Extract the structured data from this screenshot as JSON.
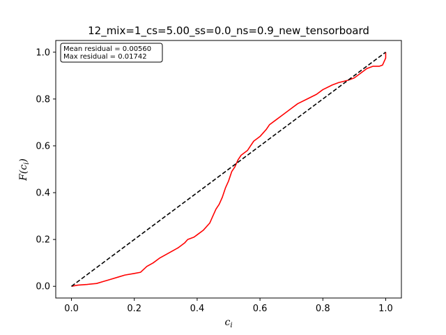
{
  "chart_data": {
    "type": "line",
    "title": "12_mix=1_cs=5.00_ss=0.0_ns=0.9_new_tensorboard",
    "xlabel": "c_i",
    "ylabel": "F(c_i)",
    "xlim": [
      -0.05,
      1.05
    ],
    "ylim": [
      -0.05,
      1.05
    ],
    "x_ticks": [
      "0.0",
      "0.2",
      "0.4",
      "0.6",
      "0.8",
      "1.0"
    ],
    "y_ticks": [
      "0.0",
      "0.2",
      "0.4",
      "0.6",
      "0.8",
      "1.0"
    ],
    "grid": false,
    "annotations": [
      "Mean residual = 0.00560",
      "Max residual = 0.01742"
    ],
    "series": [
      {
        "color": "#ff0000",
        "style": "solid",
        "x": [
          0.0,
          0.02,
          0.05,
          0.08,
          0.1,
          0.12,
          0.15,
          0.17,
          0.2,
          0.22,
          0.24,
          0.26,
          0.28,
          0.3,
          0.32,
          0.34,
          0.36,
          0.37,
          0.39,
          0.4,
          0.42,
          0.44,
          0.45,
          0.46,
          0.47,
          0.48,
          0.49,
          0.5,
          0.51,
          0.52,
          0.53,
          0.54,
          0.55,
          0.56,
          0.57,
          0.58,
          0.6,
          0.62,
          0.63,
          0.65,
          0.67,
          0.7,
          0.72,
          0.75,
          0.78,
          0.8,
          0.83,
          0.85,
          0.88,
          0.9,
          0.92,
          0.94,
          0.96,
          0.98,
          0.99,
          0.995,
          1.0,
          1.0
        ],
        "y": [
          0.0,
          0.005,
          0.008,
          0.012,
          0.02,
          0.028,
          0.04,
          0.048,
          0.055,
          0.06,
          0.085,
          0.1,
          0.12,
          0.135,
          0.15,
          0.165,
          0.185,
          0.2,
          0.21,
          0.22,
          0.24,
          0.27,
          0.3,
          0.33,
          0.35,
          0.38,
          0.42,
          0.45,
          0.49,
          0.51,
          0.54,
          0.56,
          0.57,
          0.58,
          0.6,
          0.62,
          0.64,
          0.67,
          0.69,
          0.71,
          0.73,
          0.76,
          0.78,
          0.8,
          0.82,
          0.84,
          0.86,
          0.87,
          0.88,
          0.89,
          0.91,
          0.93,
          0.94,
          0.94,
          0.945,
          0.96,
          0.975,
          1.0
        ]
      },
      {
        "color": "#000000",
        "style": "dashed",
        "x": [
          0.0,
          1.0
        ],
        "y": [
          0.0,
          1.0
        ]
      }
    ]
  }
}
